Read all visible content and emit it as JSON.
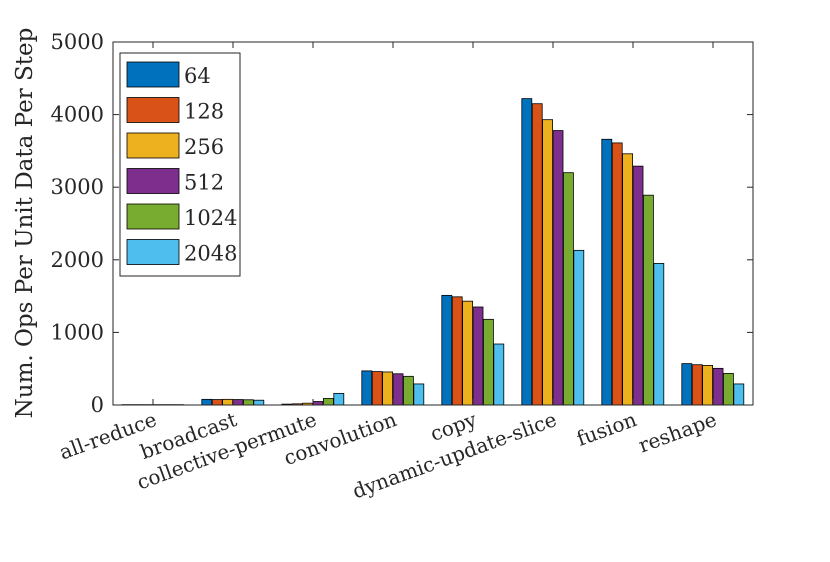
{
  "chart_data": {
    "type": "bar",
    "title": "",
    "xlabel": "",
    "ylabel": "Num. Ops Per Unit Data Per Step",
    "ylim": [
      0,
      5000
    ],
    "yticks": [
      "0",
      "1000",
      "2000",
      "3000",
      "4000",
      "5000"
    ],
    "grid": false,
    "legend_position": "top-left",
    "categories": [
      "all-reduce",
      "broadcast",
      "collective-permute",
      "convolution",
      "copy",
      "dynamic-update-slice",
      "fusion",
      "reshape"
    ],
    "series": [
      {
        "name": "64",
        "color": "#0072BD",
        "values": [
          5,
          78,
          12,
          470,
          1510,
          4220,
          3660,
          570
        ]
      },
      {
        "name": "128",
        "color": "#D95319",
        "values": [
          5,
          75,
          16,
          460,
          1490,
          4150,
          3610,
          555
        ]
      },
      {
        "name": "256",
        "color": "#EDB120",
        "values": [
          5,
          78,
          25,
          455,
          1430,
          3930,
          3460,
          545
        ]
      },
      {
        "name": "512",
        "color": "#7E2F8E",
        "values": [
          5,
          75,
          48,
          430,
          1350,
          3780,
          3290,
          505
        ]
      },
      {
        "name": "1024",
        "color": "#77AC30",
        "values": [
          5,
          72,
          90,
          395,
          1180,
          3200,
          2890,
          435
        ]
      },
      {
        "name": "2048",
        "color": "#4DBEEE",
        "values": [
          5,
          66,
          160,
          290,
          840,
          2130,
          1950,
          290
        ]
      }
    ]
  }
}
